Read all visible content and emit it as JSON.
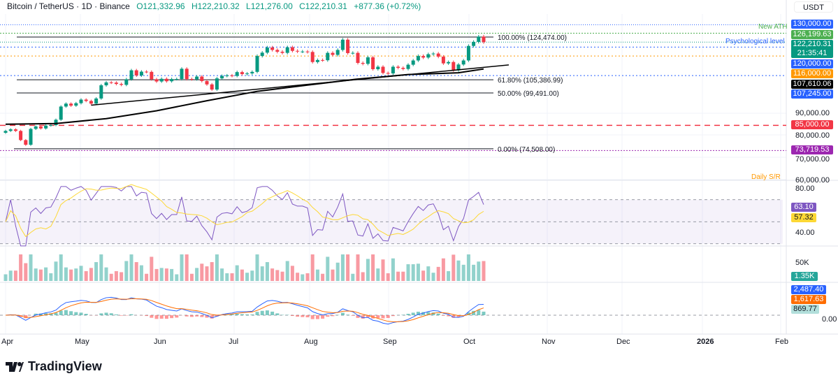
{
  "header": {
    "symbol": "Bitcoin / TetherUS · 1D · Binance",
    "open": "O121,332.96",
    "high": "H122,210.32",
    "low": "L121,276.00",
    "close": "C122,210.31",
    "change": "+877.36 (+0.72%)"
  },
  "currency": "USDT",
  "price_labels": [
    {
      "text": "130,000.00",
      "price": 130000,
      "color": "#2962ff"
    },
    {
      "text": "126,199.63",
      "price": 126199.63,
      "color": "#4caf50"
    },
    {
      "text": "122,210.31",
      "price": 122210.31,
      "color": "#089981",
      "sub": "21:35:41"
    },
    {
      "text": "120,000.00",
      "price": 120000,
      "color": "#2962ff"
    },
    {
      "text": "116,000.00",
      "price": 116000,
      "color": "#ff9800"
    },
    {
      "text": "107,610.06",
      "price": 107610.06,
      "color": "#000000"
    },
    {
      "text": "107,245.00",
      "price": 107245,
      "color": "#2962ff"
    },
    {
      "text": "85,000.00",
      "price": 85000,
      "color": "#f23645"
    },
    {
      "text": "73,719.53",
      "price": 73719.53,
      "color": "#9c27b0"
    }
  ],
  "axis_ticks": [
    {
      "text": "90,000.00",
      "price": 90000
    },
    {
      "text": "80,000.00",
      "price": 80000
    },
    {
      "text": "70,000.00",
      "price": 70000
    },
    {
      "text": "60,000.00",
      "price": 60000
    }
  ],
  "annotations": {
    "ath": "New ATH",
    "psych": "Psychological level",
    "sr": "Daily S/R"
  },
  "fib": [
    {
      "text": "100.00% (124,474.00)",
      "price": 124474
    },
    {
      "text": "61.80% (105,386.99)",
      "price": 105386.99
    },
    {
      "text": "50.00% (99,491.00)",
      "price": 99491
    },
    {
      "text": "0.00% (74,508.00)",
      "price": 74508
    }
  ],
  "rsi": {
    "tick_80": "80.00",
    "tick_40": "40.00",
    "value": "63.10",
    "ma": "57.32"
  },
  "volume": {
    "tick": "50K",
    "value": "1.35K"
  },
  "macd": {
    "macd": "2,487.40",
    "signal": "1,617.63",
    "hist": "869.77",
    "zero": "0.00"
  },
  "time_axis": [
    "Apr",
    "May",
    "Jun",
    "Jul",
    "Aug",
    "Sep",
    "Oct",
    "Nov",
    "Dec",
    "2026",
    "Feb"
  ],
  "brand": "TradingView",
  "chart_data": {
    "type": "candlestick",
    "title": "Bitcoin / TetherUS · 1D · Binance",
    "interval_days": 2,
    "start": "Apr 1",
    "ylabel": "USDT",
    "closes_k": [
      82.5,
      83.2,
      82.5,
      78.4,
      76.3,
      83.4,
      84.5,
      83.6,
      84.9,
      85.1,
      87.5,
      93.4,
      94.7,
      93.8,
      94.9,
      96.5,
      95.9,
      94.7,
      97.0,
      102.9,
      104.2,
      104.1,
      103.5,
      103.1,
      105.6,
      109.6,
      107.3,
      109.0,
      108.9,
      105.6,
      104.6,
      105.8,
      104.7,
      105.7,
      105.7,
      110.3,
      105.7,
      105.6,
      106.8,
      104.8,
      103.3,
      101.0,
      106.0,
      107.1,
      107.3,
      107.1,
      108.8,
      107.9,
      108.2,
      108.9,
      116.0,
      117.5,
      119.8,
      118.7,
      117.9,
      117.4,
      119.9,
      118.3,
      118.0,
      118.0,
      117.8,
      113.3,
      114.2,
      114.1,
      117.4,
      116.5,
      118.7,
      123.3,
      117.3,
      117.4,
      112.9,
      112.5,
      115.4,
      110.1,
      111.2,
      108.4,
      108.2,
      111.2,
      110.7,
      110.2,
      112.1,
      114.0,
      116.0,
      115.3,
      116.8,
      117.1,
      115.7,
      112.7,
      113.3,
      109.6,
      112.2,
      114.0,
      120.5,
      122.3,
      124.7,
      122.2
    ],
    "ma200_k": [
      [
        0,
        85.5
      ],
      [
        20,
        85.8
      ],
      [
        40,
        88
      ],
      [
        60,
        91.5
      ],
      [
        80,
        96
      ],
      [
        100,
        100.2
      ],
      [
        120,
        103
      ],
      [
        140,
        105.7
      ],
      [
        160,
        107.7
      ],
      [
        180,
        108.5
      ],
      [
        190,
        110.2
      ]
    ],
    "trendline_k": [
      [
        34,
        94
      ],
      [
        200,
        112
      ]
    ]
  }
}
